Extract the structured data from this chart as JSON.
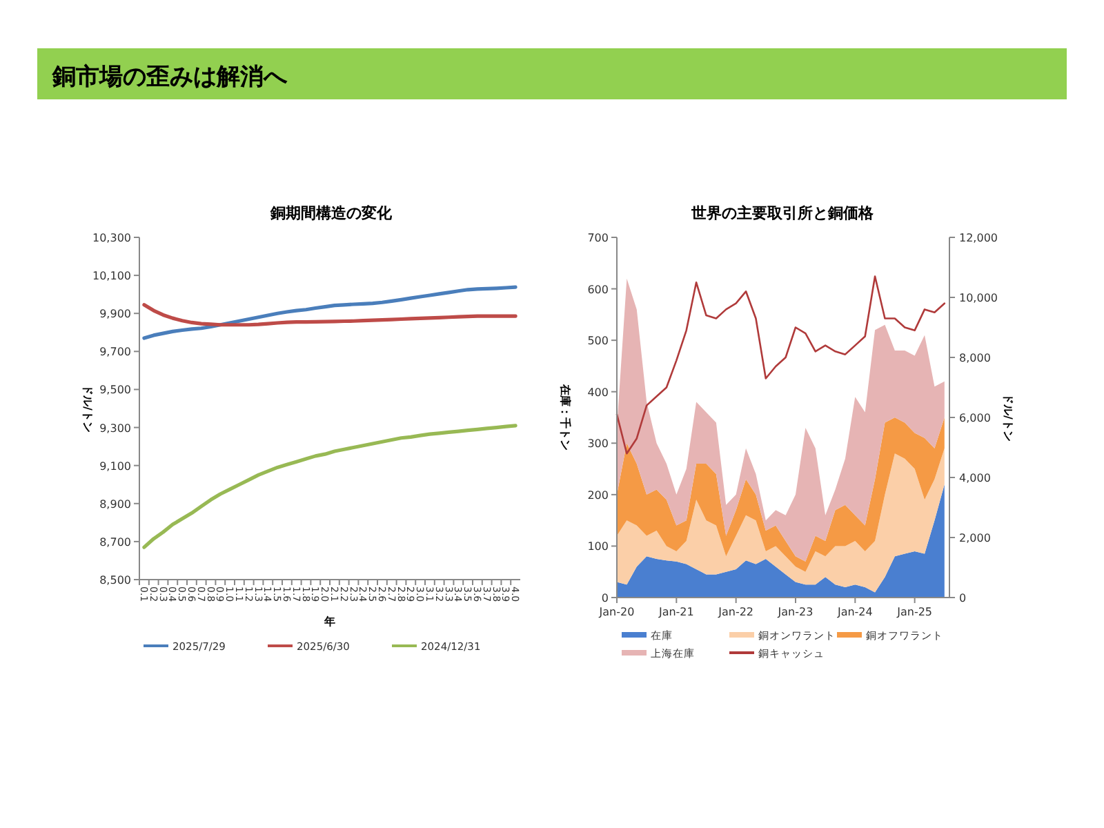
{
  "chart_data": [
    {
      "type": "line",
      "title": "銅期間構造の変化",
      "annotations": [
        "銅市場の歪みは解消へ"
      ],
      "xlabel": "年",
      "ylabel": "ドル/トン",
      "categories": [
        "0.1",
        "0.2",
        "0.3",
        "0.4",
        "0.5",
        "0.6",
        "0.7",
        "0.8",
        "0.9",
        "1.0",
        "1.1",
        "1.2",
        "1.3",
        "1.4",
        "1.5",
        "1.6",
        "1.7",
        "1.8",
        "1.9",
        "2.0",
        "2.1",
        "2.2",
        "2.3",
        "2.4",
        "2.5",
        "2.6",
        "2.7",
        "2.8",
        "2.9",
        "3.0",
        "3.1",
        "3.2",
        "3.3",
        "3.4",
        "3.5",
        "3.6",
        "3.7",
        "3.8",
        "3.9",
        "4.0"
      ],
      "series": [
        {
          "name": "2025/7/29",
          "color": "#4a7ebb",
          "values": [
            9770,
            9785,
            9795,
            9805,
            9812,
            9818,
            9822,
            9830,
            9840,
            9850,
            9860,
            9870,
            9880,
            9890,
            9900,
            9908,
            9915,
            9920,
            9928,
            9935,
            9942,
            9945,
            9948,
            9950,
            9953,
            9958,
            9965,
            9972,
            9980,
            9988,
            9995,
            10003,
            10010,
            10018,
            10025,
            10028,
            10030,
            10032,
            10035,
            10038
          ]
        },
        {
          "name": "2025/6/30",
          "color": "#be4b48",
          "values": [
            9945,
            9915,
            9892,
            9875,
            9862,
            9852,
            9846,
            9843,
            9840,
            9840,
            9840,
            9840,
            9842,
            9846,
            9850,
            9853,
            9855,
            9855,
            9856,
            9857,
            9858,
            9859,
            9860,
            9862,
            9864,
            9866,
            9868,
            9870,
            9872,
            9874,
            9876,
            9878,
            9880,
            9882,
            9884,
            9886,
            9886,
            9886,
            9886,
            9886
          ]
        },
        {
          "name": "2024/12/31",
          "color": "#98b954",
          "values": [
            8670,
            8715,
            8750,
            8790,
            8820,
            8850,
            8885,
            8920,
            8950,
            8975,
            9000,
            9025,
            9050,
            9070,
            9090,
            9105,
            9120,
            9135,
            9150,
            9160,
            9175,
            9185,
            9195,
            9205,
            9215,
            9225,
            9235,
            9245,
            9250,
            9258,
            9265,
            9270,
            9275,
            9280,
            9285,
            9290,
            9295,
            9300,
            9305,
            9310
          ]
        }
      ],
      "ylim": [
        8500,
        10300
      ],
      "yticks": [
        {
          "value": 8500,
          "label": "8,500"
        },
        {
          "value": 8700,
          "label": "8,700"
        },
        {
          "value": 8900,
          "label": "8,900"
        },
        {
          "value": 9100,
          "label": "9,100"
        },
        {
          "value": 9300,
          "label": "9,300"
        },
        {
          "value": 9500,
          "label": "9,500"
        },
        {
          "value": 9700,
          "label": "9,700"
        },
        {
          "value": 9900,
          "label": "9,900"
        },
        {
          "value": 10100,
          "label": "10,100"
        },
        {
          "value": 10300,
          "label": "10,300"
        }
      ],
      "grid": false,
      "legend": "bottom",
      "marker": "none",
      "line_style": "solid"
    },
    {
      "type": "area",
      "title": "世界の主要取引所と銅価格",
      "ylabel": "在庫：千トン",
      "y2label": "ドル/トン",
      "stacked": true,
      "x": [
        "2020-01",
        "2020-03",
        "2020-05",
        "2020-07",
        "2020-09",
        "2020-11",
        "2021-01",
        "2021-03",
        "2021-05",
        "2021-07",
        "2021-09",
        "2021-11",
        "2022-01",
        "2022-03",
        "2022-05",
        "2022-07",
        "2022-09",
        "2022-11",
        "2023-01",
        "2023-03",
        "2023-05",
        "2023-07",
        "2023-09",
        "2023-11",
        "2024-01",
        "2024-03",
        "2024-05",
        "2024-07",
        "2024-09",
        "2024-11",
        "2025-01",
        "2025-03",
        "2025-05",
        "2025-07"
      ],
      "series": [
        {
          "name": "在庫",
          "color": "#4a7fd0",
          "values": [
            30,
            25,
            60,
            80,
            75,
            72,
            70,
            65,
            55,
            45,
            45,
            50,
            55,
            72,
            65,
            75,
            60,
            45,
            30,
            25,
            25,
            40,
            25,
            20,
            25,
            20,
            10,
            40,
            80,
            85,
            90,
            85,
            150,
            220
          ]
        },
        {
          "name": "銅オンワラント",
          "color": "#fbcfa8",
          "values": [
            90,
            125,
            80,
            40,
            55,
            28,
            20,
            45,
            135,
            105,
            95,
            30,
            65,
            88,
            85,
            15,
            40,
            35,
            30,
            25,
            65,
            40,
            75,
            80,
            85,
            70,
            100,
            160,
            200,
            185,
            160,
            105,
            80,
            70
          ]
        },
        {
          "name": "銅オフワラント",
          "color": "#f59a45",
          "values": [
            80,
            150,
            120,
            80,
            80,
            90,
            50,
            40,
            70,
            110,
            100,
            40,
            50,
            70,
            50,
            40,
            40,
            30,
            20,
            20,
            30,
            30,
            70,
            80,
            50,
            50,
            120,
            140,
            70,
            70,
            70,
            120,
            60,
            60
          ]
        },
        {
          "name": "上海在庫",
          "color": "#e6b4b4",
          "values": [
            130,
            320,
            300,
            180,
            90,
            70,
            60,
            100,
            120,
            100,
            100,
            60,
            30,
            60,
            40,
            20,
            30,
            50,
            120,
            260,
            170,
            50,
            40,
            90,
            230,
            220,
            290,
            190,
            130,
            140,
            150,
            200,
            120,
            70
          ]
        },
        {
          "name": "銅キャッシュ",
          "type": "line",
          "axis": "y2",
          "color": "#b03a3a",
          "values": [
            6100,
            4800,
            5300,
            6400,
            6700,
            7000,
            7900,
            8900,
            10500,
            9400,
            9300,
            9600,
            9800,
            10200,
            9300,
            7300,
            7700,
            8000,
            9000,
            8800,
            8200,
            8400,
            8200,
            8100,
            8400,
            8700,
            10700,
            9300,
            9300,
            9000,
            8900,
            9600,
            9500,
            9800
          ]
        }
      ],
      "xlim": [
        "2020-01",
        "2025-08"
      ],
      "xticks": [
        {
          "value": "2020-01",
          "label": "Jan-20"
        },
        {
          "value": "2021-01",
          "label": "Jan-21"
        },
        {
          "value": "2022-01",
          "label": "Jan-22"
        },
        {
          "value": "2023-01",
          "label": "Jan-23"
        },
        {
          "value": "2024-01",
          "label": "Jan-24"
        },
        {
          "value": "2025-01",
          "label": "Jan-25"
        }
      ],
      "ylim": [
        0,
        700
      ],
      "yticks": [
        0,
        100,
        200,
        300,
        400,
        500,
        600,
        700
      ],
      "y2lim": [
        0,
        12000
      ],
      "y2ticks": [
        0,
        {
          "value": 2000,
          "label": "2,000"
        },
        {
          "value": 4000,
          "label": "4,000"
        },
        {
          "value": 6000,
          "label": "6,000"
        },
        {
          "value": 8000,
          "label": "8,000"
        },
        {
          "value": 10000,
          "label": "10,000"
        },
        {
          "value": 12000,
          "label": "12,000"
        }
      ],
      "grid": false,
      "legend": "bottom",
      "marker": "none",
      "line_style": "solid"
    }
  ]
}
